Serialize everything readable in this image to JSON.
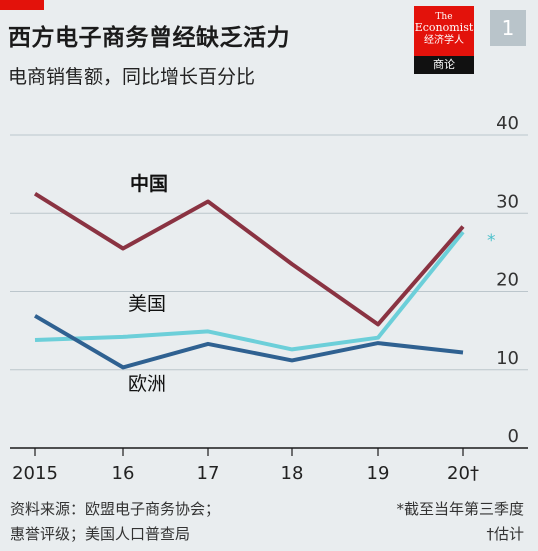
{
  "header": {
    "title": "西方电子商务曾经缺乏活力",
    "subtitle": "电商销售额，同比增长百分比",
    "logo": {
      "line1": "The",
      "line2": "Economist",
      "line3": "经济学人",
      "bottom": "商论"
    },
    "badge": "1"
  },
  "footer": {
    "source_line1": "资料来源：欧盟电子商务协会；",
    "source_line2": "惠誉评级；美国人口普查局",
    "note_line1": "*截至当年第三季度",
    "note_line2": "†估计"
  },
  "colors": {
    "china": "#8a3342",
    "usa": "#6ccfd9",
    "europe": "#2f6191",
    "brand": "#e3120b"
  },
  "chart_data": {
    "type": "line",
    "x": [
      "2015",
      "16",
      "17",
      "18",
      "19",
      "20†"
    ],
    "ylim": [
      0,
      40
    ],
    "yticks": [
      0,
      10,
      20,
      30,
      40
    ],
    "grid": true,
    "series": [
      {
        "name": "中国",
        "values": [
          32.5,
          25.5,
          31.5,
          23.5,
          15.8,
          28.3
        ]
      },
      {
        "name": "美国",
        "values": [
          13.8,
          14.2,
          14.9,
          12.6,
          14.1,
          27.6
        ]
      },
      {
        "name": "欧洲",
        "values": [
          16.9,
          10.3,
          13.3,
          11.2,
          13.4,
          12.2
        ]
      }
    ],
    "annotation": "*"
  }
}
